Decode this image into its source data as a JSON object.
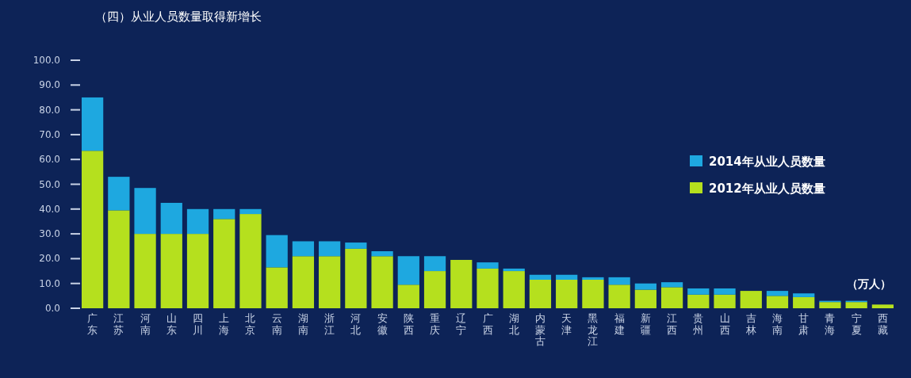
{
  "chart_data": {
    "type": "bar",
    "title": "（四）从业人员数量取得新增长",
    "annotations": [
      "（万人）"
    ],
    "categories": [
      "广东",
      "江苏",
      "河南",
      "山东",
      "四川",
      "上海",
      "北京",
      "云南",
      "湖南",
      "浙江",
      "河北",
      "安徽",
      "陕西",
      "重庆",
      "辽宁",
      "广西",
      "湖北",
      "内蒙古",
      "天津",
      "黑龙江",
      "福建",
      "新疆",
      "江西",
      "贵州",
      "山西",
      "吉林",
      "海南",
      "甘肃",
      "青海",
      "宁夏",
      "西藏"
    ],
    "stacked": true,
    "series": [
      {
        "name": "2012年从业人员数量",
        "color": "#b5e01e",
        "values": [
          63.5,
          39.5,
          30,
          30,
          30,
          36,
          38,
          16.5,
          21,
          21,
          24,
          21,
          9.5,
          15,
          19.5,
          16,
          15,
          11.5,
          11.5,
          11.5,
          9.5,
          7.5,
          8.5,
          5.5,
          5.5,
          7,
          5,
          4.5,
          2.5,
          2.5,
          1.5
        ]
      },
      {
        "name": "2014年从业人员数量",
        "color": "#1ea8e0",
        "values": [
          21.5,
          13.5,
          18.5,
          12.5,
          10,
          4,
          2,
          13,
          6,
          6,
          2.5,
          2,
          11.5,
          6,
          0,
          2.5,
          1,
          2,
          2,
          1,
          3,
          2.5,
          2,
          2.5,
          2.5,
          0,
          2,
          1.5,
          0.5,
          0.5,
          0
        ]
      }
    ],
    "ylim": [
      0,
      100
    ],
    "yticks": [
      {
        "value": 0,
        "label": "0.0"
      },
      {
        "value": 10,
        "label": "10.0"
      },
      {
        "value": 20,
        "label": "20.0"
      },
      {
        "value": 30,
        "label": "30.0"
      },
      {
        "value": 40,
        "label": "40.0"
      },
      {
        "value": 50,
        "label": "50.0"
      },
      {
        "value": 60,
        "label": "60.0"
      },
      {
        "value": 70,
        "label": "70.0"
      },
      {
        "value": 80,
        "label": "80.0"
      },
      {
        "value": 90,
        "label": "90.0"
      },
      {
        "value": 100,
        "label": "100.0"
      }
    ],
    "grid": false,
    "legend": "top right"
  }
}
